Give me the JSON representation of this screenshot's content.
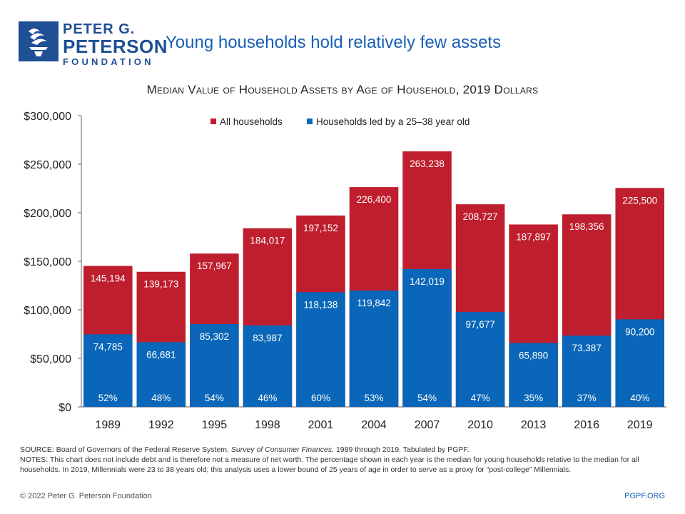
{
  "header": {
    "logo_line1": "PETER G.",
    "logo_line2": "PETERSON",
    "logo_line3": "FOUNDATION",
    "headline": "Young households hold relatively few assets"
  },
  "chart_data": {
    "type": "bar",
    "title": "Median Value of Household Assets by Age of Household, 2019 Dollars",
    "categories": [
      "1989",
      "1992",
      "1995",
      "1998",
      "2001",
      "2004",
      "2007",
      "2010",
      "2013",
      "2016",
      "2019"
    ],
    "series": [
      {
        "name": "All households",
        "color": "#be1e2d",
        "values": [
          145194,
          139173,
          157967,
          184017,
          197152,
          226400,
          263238,
          208727,
          187897,
          198356,
          225500
        ],
        "labels": [
          "145,194",
          "139,173",
          "157,967",
          "184,017",
          "197,152",
          "226,400",
          "263,238",
          "208,727",
          "187,897",
          "198,356",
          "225,500"
        ]
      },
      {
        "name": "Households led by a 25–38 year old",
        "color": "#0966b8",
        "values": [
          74785,
          66681,
          85302,
          83987,
          118138,
          119842,
          142019,
          97677,
          65890,
          73387,
          90200
        ],
        "labels": [
          "74,785",
          "66,681",
          "85,302",
          "83,987",
          "118,138",
          "119,842",
          "142,019",
          "97,677",
          "65,890",
          "73,387",
          "90,200"
        ]
      }
    ],
    "percent_labels": [
      "52%",
      "48%",
      "54%",
      "46%",
      "60%",
      "53%",
      "54%",
      "47%",
      "35%",
      "37%",
      "40%"
    ],
    "ylim": [
      0,
      300000
    ],
    "yticks": [
      0,
      50000,
      100000,
      150000,
      200000,
      250000,
      300000
    ],
    "ytick_labels": [
      "$0",
      "$50,000",
      "$100,000",
      "$150,000",
      "$200,000",
      "$250,000",
      "$300,000"
    ],
    "legend_position": "top-center",
    "grid": false,
    "xlabel": "",
    "ylabel": ""
  },
  "footer": {
    "source_pre": "SOURCE:  Board of Governors of the Federal Reserve System, ",
    "source_italic": "Survey of Consumer Finances,",
    "source_post": " 1989 through 2019. Tabulated by PGPF.",
    "notes": "NOTES: This chart does not include debt and is therefore not a measure of net worth. The percentage shown in each year is the median for young households relative to the median for all households. In 2019, Millennials were 23 to 38 years old; this analysis uses a lower bound of 25 years of age in order to serve as a proxy for “post-college” Millennials.",
    "copyright": "© 2022 Peter  G. Peterson Foundation",
    "site": "PGPF.ORG"
  }
}
